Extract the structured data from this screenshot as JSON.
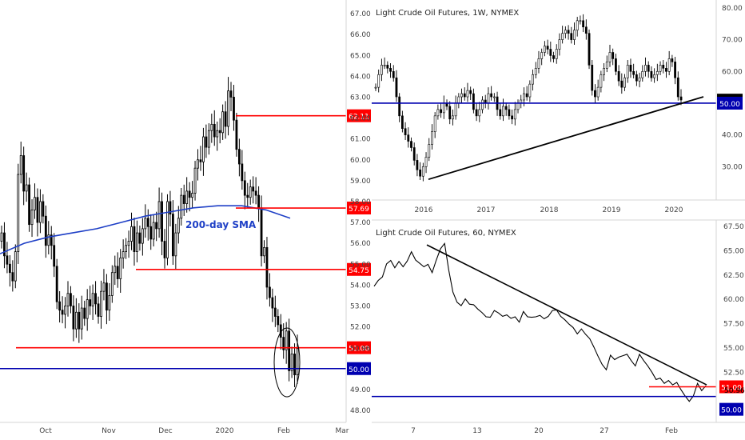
{
  "colors": {
    "bull": "#ffffff",
    "bear": "#000000",
    "candle_outline": "#000000",
    "resistance": "#ff0000",
    "support": "#0000b0",
    "sma": "#1e3fc6",
    "trend": "#000000",
    "grid_border": "#d6d6d6",
    "axis_text": "#444444"
  },
  "chart_data": [
    {
      "type": "candlestick",
      "title": "",
      "ylim": [
        47.5,
        67.5
      ],
      "y_ticks": [
        "67.00",
        "66.00",
        "65.00",
        "64.00",
        "63.00",
        "62.00",
        "61.00",
        "60.00",
        "59.00",
        "58.00",
        "57.00",
        "56.00",
        "55.00",
        "54.00",
        "53.00",
        "52.00",
        "51.00",
        "50.96",
        "50.00",
        "49.00",
        "48.00"
      ],
      "x_ticks": [
        "Oct",
        "Nov",
        "Dec",
        "2020",
        "Feb",
        "Mar"
      ],
      "annotation": "200-day SMA",
      "levels": [
        {
          "label": "62.11",
          "value": 62.11,
          "color": "resistance"
        },
        {
          "label": "57.69",
          "value": 57.69,
          "color": "resistance"
        },
        {
          "label": "54.75",
          "value": 54.75,
          "color": "resistance"
        },
        {
          "label": "51.00",
          "value": 51.0,
          "color": "resistance"
        },
        {
          "label": "50.00",
          "value": 50.0,
          "color": "support"
        }
      ],
      "sma_200": [
        55.5,
        56.0,
        56.3,
        56.5,
        56.7,
        57.0,
        57.3,
        57.5,
        57.7,
        57.8,
        57.8,
        57.6,
        57.2
      ],
      "closes": [
        56.5,
        55.4,
        55.0,
        54.6,
        54.2,
        55.6,
        59.3,
        60.2,
        58.5,
        58.8,
        56.9,
        57.6,
        58.2,
        57.0,
        58.0,
        57.3,
        55.9,
        56.4,
        55.9,
        54.9,
        53.2,
        52.8,
        52.6,
        53.0,
        53.6,
        53.0,
        51.9,
        52.7,
        51.9,
        52.9,
        52.4,
        53.3,
        53.0,
        53.6,
        53.1,
        52.5,
        53.7,
        54.1,
        52.8,
        53.5,
        54.6,
        54.9,
        54.3,
        55.3,
        55.6,
        55.9,
        56.1,
        56.8,
        55.6,
        56.5,
        56.0,
        56.7,
        57.2,
        56.8,
        56.2,
        57.0,
        56.7,
        58.0,
        56.1,
        55.3,
        58.0,
        57.4,
        55.4,
        56.5,
        57.2,
        58.3,
        57.9,
        58.5,
        58.2,
        58.4,
        59.6,
        60.0,
        59.9,
        61.1,
        60.6,
        61.4,
        61.7,
        61.1,
        61.4,
        61.3,
        62.3,
        61.6,
        63.3,
        63.0,
        61.9,
        60.5,
        59.8,
        59.0,
        58.3,
        58.2,
        58.7,
        58.5,
        58.3,
        57.7,
        55.4,
        55.8,
        53.9,
        53.4,
        52.9,
        52.5,
        52.1,
        51.5,
        50.9,
        51.8,
        49.9,
        50.7,
        49.7,
        50.96
      ],
      "x_range_bars": [
        0,
        142
      ]
    },
    {
      "type": "candlestick",
      "title": "Light Crude Oil Futures, 1W, NYMEX",
      "ylim": [
        20,
        82
      ],
      "y_ticks": [
        "80.00",
        "70.00",
        "60.00",
        "50.96",
        "50.00",
        "40.00",
        "30.00"
      ],
      "x_ticks": [
        "2016",
        "2017",
        "2018",
        "2019",
        "2020"
      ],
      "levels": [
        {
          "label": "50.96",
          "value": 50.96,
          "color": "bear"
        },
        {
          "label": "50.00",
          "value": 50.0,
          "color": "support"
        }
      ],
      "trendline": {
        "from": [
          "2016-01",
          26.0
        ],
        "to": [
          "2020-06",
          50.0
        ]
      },
      "closes": [
        55,
        59,
        62,
        62,
        61,
        60,
        58,
        52,
        46,
        42,
        40,
        38,
        36,
        32,
        29,
        27,
        30,
        33,
        37,
        41,
        46,
        48,
        47,
        50,
        49,
        45,
        46,
        50,
        52,
        53,
        52,
        54,
        53,
        48,
        46,
        48,
        51,
        50,
        53,
        52,
        52,
        48,
        46,
        49,
        48,
        46,
        45,
        48,
        50,
        51,
        53,
        52,
        56,
        59,
        61,
        64,
        66,
        68,
        67,
        65,
        64,
        67,
        70,
        72,
        73,
        72,
        70,
        73,
        76,
        76,
        74,
        72,
        62,
        54,
        52,
        55,
        59,
        61,
        63,
        66,
        64,
        60,
        57,
        55,
        58,
        62,
        60,
        59,
        57,
        58,
        60,
        62,
        60,
        58,
        59,
        60,
        62,
        61,
        60,
        64,
        63,
        58,
        52,
        51
      ],
      "x_range": [
        2015.0,
        2020.75
      ]
    },
    {
      "type": "line",
      "title": "Light Crude Oil Futures, 60, NYMEX",
      "ylim": [
        47.5,
        68.0
      ],
      "y_ticks": [
        "67.50",
        "65.00",
        "62.50",
        "60.00",
        "57.50",
        "55.00",
        "52.50",
        "51.00",
        "50.96",
        "50.00"
      ],
      "x_ticks": [
        "7",
        "13",
        "20",
        "27",
        "Feb"
      ],
      "levels": [
        {
          "label": "51.00",
          "value": 51.0,
          "color": "resistance"
        },
        {
          "label": "50.96",
          "value": 50.96,
          "color": "bear"
        },
        {
          "label": "50.00",
          "value": 50.0,
          "color": "support"
        }
      ],
      "trendline": {
        "from": [
          "Jan 8",
          65.6
        ],
        "to": [
          "Feb 5",
          51.2
        ]
      },
      "values": [
        61.8,
        61.5,
        62.0,
        63.5,
        64.0,
        63.4,
        64.2,
        63.8,
        63.5,
        64.6,
        63.9,
        63.7,
        63.5,
        63.9,
        63.2,
        63.6,
        64.9,
        65.6,
        63.0,
        60.9,
        60.0,
        59.8,
        59.6,
        59.2,
        59.3,
        59.0,
        58.8,
        58.5,
        58.6,
        58.4,
        58.3,
        58.1,
        58.4,
        58.2,
        58.5,
        58.1,
        58.3,
        57.9,
        58.0,
        58.2,
        58.5,
        58.3,
        58.7,
        58.4,
        58.6,
        58.1,
        57.9,
        57.6,
        57.4,
        56.9,
        56.5,
        56.1,
        55.8,
        55.1,
        54.3,
        53.6,
        53.2,
        53.8,
        53.5,
        53.9,
        54.2,
        54.5,
        54.0,
        53.6,
        53.9,
        53.4,
        53.0,
        52.5,
        51.9,
        52.2,
        51.8,
        51.2,
        50.9,
        51.3,
        50.7,
        50.2,
        49.8,
        50.5,
        50.9,
        50.3,
        50.96
      ],
      "x_range": [
        2.5,
        40.5
      ]
    }
  ]
}
